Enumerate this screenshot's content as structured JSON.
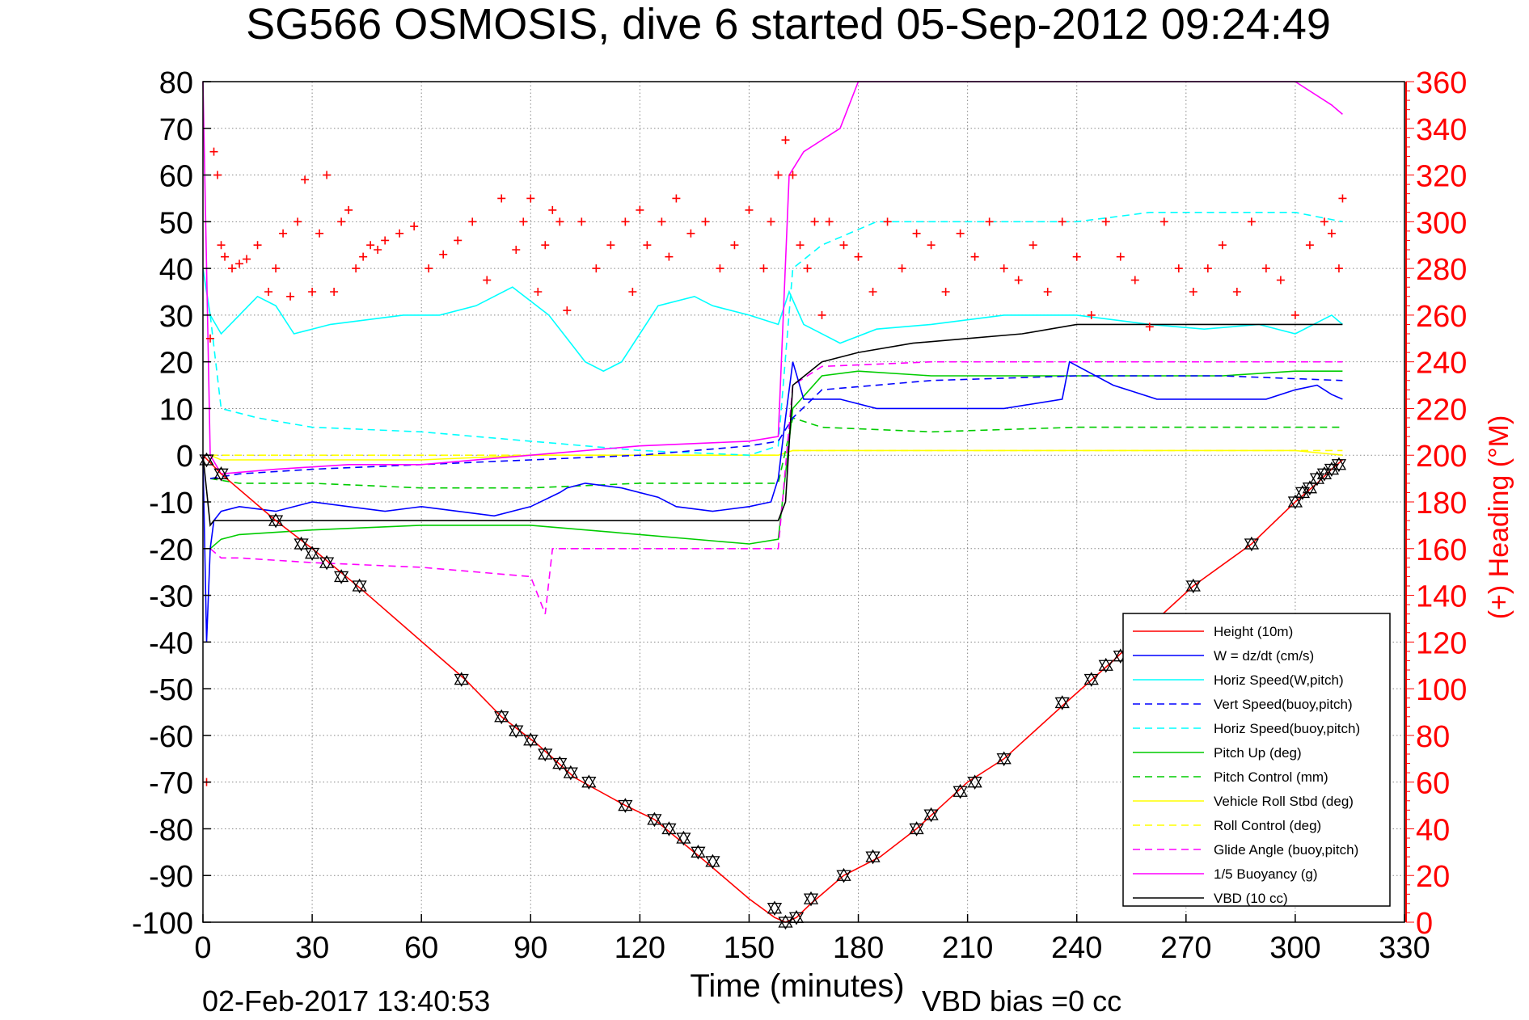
{
  "chart_data": {
    "type": "line",
    "title": "SG566 OSMOSIS, dive 6 started 05-Sep-2012 09:24:49",
    "xlabel": "Time (minutes)",
    "ylabel_right": "(+) Heading (°M)",
    "footer_left": "02-Feb-2017 13:40:53",
    "footer_right": "VBD bias =0 cc",
    "xlim": [
      0,
      330
    ],
    "ylim": [
      -100,
      80
    ],
    "y2lim": [
      0,
      360
    ],
    "xticks": [
      0,
      30,
      60,
      90,
      120,
      150,
      180,
      210,
      240,
      270,
      300,
      330
    ],
    "yticks": [
      -100,
      -90,
      -80,
      -70,
      -60,
      -50,
      -40,
      -30,
      -20,
      -10,
      0,
      10,
      20,
      30,
      40,
      50,
      60,
      70,
      80
    ],
    "y2ticks": [
      0,
      20,
      40,
      60,
      80,
      100,
      120,
      140,
      160,
      180,
      200,
      220,
      240,
      260,
      280,
      300,
      320,
      340,
      360
    ],
    "grid": true,
    "legend_position": "bottom-right",
    "heading_color": "#ff0000",
    "series": [
      {
        "name": "Height (10m)",
        "color": "#ff0000",
        "dash": "solid",
        "x": [
          0,
          5,
          20,
          30,
          44,
          72,
          82,
          92,
          102,
          116,
          124,
          138,
          150,
          157,
          160,
          163,
          167,
          176,
          186,
          196,
          210,
          220,
          237,
          250,
          258,
          272,
          288,
          300,
          306,
          310,
          313
        ],
        "y": [
          0,
          -4,
          -14,
          -20,
          -29,
          -48,
          -56,
          -62,
          -69,
          -75,
          -78,
          -87,
          -95,
          -99,
          -100,
          -99,
          -96,
          -90,
          -86,
          -80,
          -70,
          -65,
          -53,
          -44,
          -38,
          -28,
          -19,
          -10,
          -6,
          -3,
          -1
        ]
      },
      {
        "name": "W = dz/dt (cm/s)",
        "color": "#0000ff",
        "dash": "solid",
        "x": [
          0,
          1,
          2,
          3,
          5,
          10,
          20,
          30,
          40,
          50,
          60,
          70,
          80,
          90,
          98,
          100,
          105,
          115,
          125,
          130,
          140,
          150,
          156,
          158,
          160,
          162,
          165,
          175,
          185,
          200,
          220,
          236,
          238,
          250,
          262,
          280,
          292,
          300,
          306,
          310,
          313
        ],
        "y": [
          0,
          -40,
          -20,
          -14,
          -12,
          -11,
          -12,
          -10,
          -11,
          -12,
          -11,
          -12,
          -13,
          -11,
          -8,
          -7,
          -6,
          -7,
          -9,
          -11,
          -12,
          -11,
          -10,
          -5,
          8,
          20,
          12,
          12,
          10,
          10,
          10,
          12,
          20,
          15,
          12,
          12,
          12,
          14,
          15,
          13,
          12
        ]
      },
      {
        "name": "Horiz Speed(W,pitch)",
        "color": "#00ffff",
        "dash": "solid",
        "x": [
          0,
          2,
          5,
          10,
          15,
          20,
          25,
          35,
          45,
          55,
          65,
          75,
          85,
          95,
          100,
          105,
          110,
          115,
          125,
          135,
          140,
          150,
          158,
          161,
          165,
          175,
          185,
          200,
          220,
          240,
          260,
          275,
          290,
          300,
          305,
          310,
          313
        ],
        "y": [
          40,
          30,
          26,
          30,
          34,
          32,
          26,
          28,
          29,
          30,
          30,
          32,
          36,
          30,
          25,
          20,
          18,
          20,
          32,
          34,
          32,
          30,
          28,
          35,
          28,
          24,
          27,
          28,
          30,
          30,
          28,
          27,
          28,
          26,
          28,
          30,
          28
        ]
      },
      {
        "name": "Vert Speed(buoy,pitch)",
        "color": "#0000ff",
        "dash": "dashed",
        "x": [
          2,
          10,
          30,
          60,
          90,
          120,
          150,
          158,
          162,
          170,
          200,
          240,
          280,
          313
        ],
        "y": [
          -5,
          -4,
          -3,
          -2,
          -1,
          0,
          2,
          3,
          8,
          14,
          16,
          17,
          17,
          16
        ]
      },
      {
        "name": "Horiz Speed(buoy,pitch)",
        "color": "#00ffff",
        "dash": "dashed",
        "x": [
          2,
          5,
          15,
          30,
          60,
          90,
          120,
          150,
          158,
          162,
          170,
          185,
          200,
          240,
          260,
          280,
          300,
          313
        ],
        "y": [
          30,
          10,
          8,
          6,
          5,
          3,
          1,
          0,
          2,
          40,
          45,
          50,
          50,
          50,
          52,
          52,
          52,
          50
        ]
      },
      {
        "name": "Pitch Up (deg)",
        "color": "#00cc00",
        "dash": "solid",
        "x": [
          2,
          5,
          10,
          30,
          60,
          90,
          120,
          150,
          158,
          162,
          170,
          180,
          200,
          240,
          280,
          300,
          313
        ],
        "y": [
          -20,
          -18,
          -17,
          -16,
          -15,
          -15,
          -17,
          -19,
          -18,
          10,
          17,
          18,
          17,
          17,
          17,
          18,
          18
        ]
      },
      {
        "name": "Pitch Control (mm)",
        "color": "#00cc00",
        "dash": "dashed",
        "x": [
          2,
          10,
          30,
          60,
          90,
          120,
          150,
          158,
          162,
          170,
          200,
          240,
          280,
          313
        ],
        "y": [
          -5,
          -6,
          -6,
          -7,
          -7,
          -6,
          -6,
          -6,
          8,
          6,
          5,
          6,
          6,
          6
        ]
      },
      {
        "name": "Vehicle Roll Stbd (deg)",
        "color": "#ffff00",
        "dash": "solid",
        "x": [
          2,
          5,
          20,
          40,
          60,
          90,
          120,
          150,
          158,
          162,
          170,
          200,
          240,
          280,
          300,
          313
        ],
        "y": [
          0,
          -1,
          -1,
          -1,
          -1,
          0,
          0,
          0,
          0,
          1,
          1,
          1,
          1,
          1,
          1,
          0
        ]
      },
      {
        "name": "Roll Control (deg)",
        "color": "#ffff00",
        "dash": "dashed",
        "x": [
          2,
          10,
          40,
          80,
          120,
          158,
          162,
          200,
          240,
          280,
          313
        ],
        "y": [
          0,
          0,
          0,
          0,
          0,
          0,
          1,
          1,
          1,
          1,
          1
        ]
      },
      {
        "name": "Glide Angle (buoy,pitch)",
        "color": "#ff00ff",
        "dash": "dashed",
        "x": [
          2,
          5,
          10,
          30,
          60,
          90,
          94,
          96,
          158,
          162,
          170,
          200,
          240,
          280,
          313
        ],
        "y": [
          -20,
          -22,
          -22,
          -23,
          -24,
          -26,
          -34,
          -20,
          -20,
          15,
          19,
          20,
          20,
          20,
          20
        ]
      },
      {
        "name": "1/5 Buoyancy (g)",
        "color": "#ff00ff",
        "dash": "solid",
        "x": [
          0,
          2,
          5,
          20,
          40,
          60,
          90,
          120,
          150,
          158,
          161,
          165,
          175,
          180,
          185,
          195,
          210,
          240,
          270,
          300,
          310,
          313
        ],
        "y": [
          80,
          0,
          -4,
          -3,
          -2,
          -2,
          0,
          2,
          3,
          4,
          60,
          65,
          70,
          80,
          80,
          80,
          80,
          80,
          80,
          80,
          75,
          73
        ]
      },
      {
        "name": "VBD (10 cc)",
        "color": "#000000",
        "dash": "solid",
        "x": [
          0,
          2,
          3,
          30,
          60,
          90,
          120,
          150,
          158,
          160,
          162,
          170,
          180,
          195,
          210,
          225,
          240,
          260,
          280,
          313
        ],
        "y": [
          0,
          -15,
          -14,
          -14,
          -14,
          -14,
          -14,
          -14,
          -14,
          -10,
          15,
          20,
          22,
          24,
          25,
          26,
          28,
          28,
          28,
          28
        ]
      }
    ],
    "heading_points": {
      "x": [
        1,
        2,
        3,
        4,
        5,
        6,
        8,
        10,
        12,
        15,
        18,
        20,
        22,
        24,
        26,
        28,
        30,
        32,
        34,
        36,
        38,
        40,
        42,
        44,
        46,
        48,
        50,
        54,
        58,
        62,
        66,
        70,
        74,
        78,
        82,
        86,
        88,
        90,
        92,
        94,
        96,
        98,
        100,
        104,
        108,
        112,
        116,
        118,
        120,
        122,
        126,
        128,
        130,
        134,
        138,
        142,
        146,
        150,
        154,
        156,
        158,
        160,
        162,
        164,
        166,
        168,
        170,
        172,
        176,
        180,
        184,
        188,
        192,
        196,
        200,
        204,
        208,
        212,
        216,
        220,
        224,
        228,
        232,
        236,
        240,
        244,
        248,
        252,
        256,
        260,
        264,
        268,
        272,
        276,
        280,
        284,
        288,
        292,
        296,
        300,
        304,
        308,
        310,
        312,
        313
      ],
      "y": [
        60,
        250,
        330,
        320,
        290,
        285,
        280,
        282,
        284,
        290,
        270,
        280,
        295,
        268,
        300,
        318,
        270,
        295,
        320,
        270,
        300,
        305,
        280,
        285,
        290,
        288,
        292,
        295,
        298,
        280,
        286,
        292,
        300,
        275,
        310,
        288,
        300,
        310,
        270,
        290,
        305,
        300,
        262,
        300,
        280,
        290,
        300,
        270,
        305,
        290,
        300,
        285,
        310,
        295,
        300,
        280,
        290,
        305,
        280,
        300,
        320,
        335,
        320,
        290,
        280,
        300,
        260,
        300,
        290,
        285,
        270,
        300,
        280,
        295,
        290,
        270,
        295,
        285,
        300,
        280,
        275,
        290,
        270,
        300,
        285,
        260,
        300,
        285,
        275,
        255,
        300,
        280,
        270,
        280,
        290,
        270,
        300,
        280,
        275,
        260,
        290,
        300,
        295,
        280,
        310
      ]
    },
    "depth_markers": {
      "x": [
        1,
        5,
        20,
        27,
        30,
        34,
        38,
        43,
        71,
        82,
        86,
        90,
        94,
        98,
        101,
        106,
        116,
        124,
        128,
        132,
        136,
        140,
        157,
        160,
        163,
        167,
        176,
        184,
        196,
        200,
        208,
        212,
        220,
        236,
        244,
        248,
        252,
        272,
        288,
        300,
        302,
        304,
        306,
        308,
        310,
        312
      ],
      "y": [
        -1,
        -4,
        -14,
        -19,
        -21,
        -23,
        -26,
        -28,
        -48,
        -56,
        -59,
        -61,
        -64,
        -66,
        -68,
        -70,
        -75,
        -78,
        -80,
        -82,
        -85,
        -87,
        -97,
        -100,
        -99,
        -95,
        -90,
        -86,
        -80,
        -77,
        -72,
        -70,
        -65,
        -53,
        -48,
        -45,
        -43,
        -28,
        -19,
        -10,
        -8,
        -7,
        -5,
        -4,
        -3,
        -2
      ]
    }
  }
}
